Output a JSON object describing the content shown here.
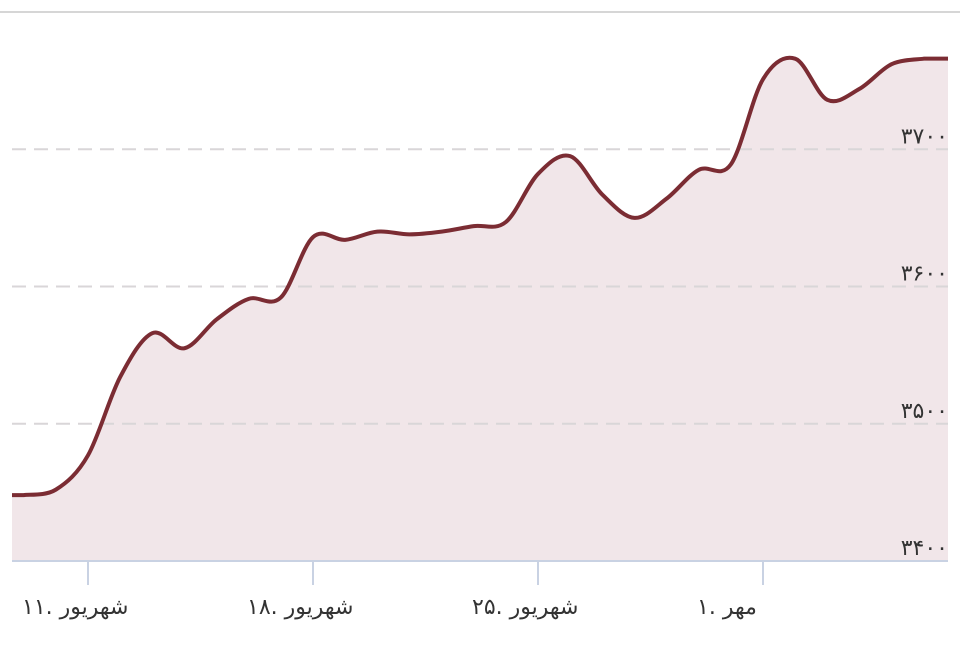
{
  "chart_data": {
    "type": "area",
    "categories": [
      null,
      null,
      "۱۱. شهریور",
      null,
      null,
      null,
      null,
      null,
      null,
      "۱۸. شهریور",
      null,
      null,
      null,
      null,
      null,
      null,
      "۲۵. شهریور",
      null,
      null,
      null,
      null,
      null,
      null,
      "۱. مهر",
      null,
      null,
      null,
      null,
      null
    ],
    "series": [
      {
        "color": "#7b2c33",
        "values": [
          3448,
          3452,
          3477,
          3534,
          3566,
          3555,
          3576,
          3591,
          3592,
          3636,
          3634,
          3640,
          3638,
          3640,
          3644,
          3647,
          3682,
          3695,
          3667,
          3650,
          3664,
          3685,
          3689,
          3751,
          3766,
          3736,
          3744,
          3762,
          3766
        ]
      }
    ],
    "ylim": [
      3400,
      3800
    ],
    "yticks": [
      {
        "value": 3400,
        "label": "۳۴۰۰"
      },
      {
        "value": 3500,
        "label": "۳۵۰۰"
      },
      {
        "value": 3600,
        "label": "۳۶۰۰"
      },
      {
        "value": 3700,
        "label": "۳۷۰۰"
      }
    ],
    "grid": true,
    "fill": "#f1e6e9"
  }
}
